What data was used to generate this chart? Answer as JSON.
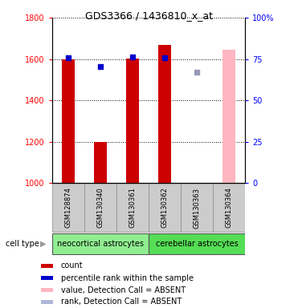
{
  "title": "GDS3366 / 1436810_x_at",
  "samples": [
    "GSM128874",
    "GSM130340",
    "GSM130361",
    "GSM130362",
    "GSM130363",
    "GSM130364"
  ],
  "cell_types": [
    {
      "label": "neocortical astrocytes",
      "samples_idx": [
        0,
        1,
        2
      ],
      "color": "#90ee90"
    },
    {
      "label": "cerebellar astrocytes",
      "samples_idx": [
        3,
        4,
        5
      ],
      "color": "#55dd55"
    }
  ],
  "bar_values": [
    1600,
    1197,
    1604,
    1667,
    null,
    1647
  ],
  "bar_colors": [
    "#cc0000",
    "#cc0000",
    "#cc0000",
    "#cc0000",
    null,
    "#ffb6c1"
  ],
  "blue_square_values": [
    1608,
    1565,
    1609,
    1608,
    1535,
    null
  ],
  "blue_square_colors": [
    "#0000cc",
    "#0000cc",
    "#0000cc",
    "#0000cc",
    "#9999bb",
    null
  ],
  "ylim_left": [
    1000,
    1800
  ],
  "ylim_right": [
    0,
    100
  ],
  "yticks_left": [
    1000,
    1200,
    1400,
    1600,
    1800
  ],
  "yticks_right": [
    0,
    25,
    50,
    75,
    100
  ],
  "ytick_labels_right": [
    "0",
    "25",
    "50",
    "75",
    "100%"
  ],
  "bar_width": 0.4,
  "sample_box_color": "#cccccc",
  "legend_items": [
    {
      "color": "#cc0000",
      "label": "count"
    },
    {
      "color": "#0000cc",
      "label": "percentile rank within the sample"
    },
    {
      "color": "#ffb6c1",
      "label": "value, Detection Call = ABSENT"
    },
    {
      "color": "#b0b8d8",
      "label": "rank, Detection Call = ABSENT"
    }
  ]
}
